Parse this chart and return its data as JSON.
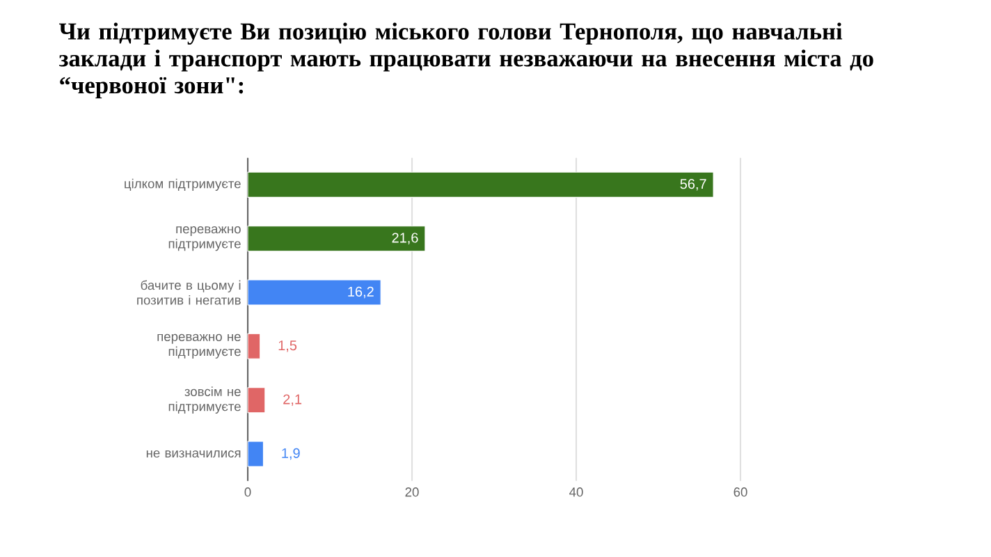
{
  "chart_data": {
    "type": "bar",
    "orientation": "horizontal",
    "title": "Чи підтримуєте Ви позицію міського голови Тернополя, що навчальні заклади і транспорт мають працювати незважаючи на внесення міста до “червоної зони\":",
    "categories": [
      "цілком підтримуєте",
      "переважно підтримуєте",
      "бачите в цьому і позитив і негатив",
      "переважно не підтримуєте",
      "зовсім не підтримуєте",
      "не визначилися"
    ],
    "values": [
      56.7,
      21.6,
      16.2,
      1.5,
      2.1,
      1.9
    ],
    "value_labels": [
      "56,7",
      "21,6",
      "16,2",
      "1,5",
      "2,1",
      "1,9"
    ],
    "colors": [
      "#38761d",
      "#38761d",
      "#4285f4",
      "#e06666",
      "#e06666",
      "#4285f4"
    ],
    "xlim": [
      0,
      60
    ],
    "xticks": [
      0,
      20,
      40,
      60
    ],
    "grid": "x"
  }
}
